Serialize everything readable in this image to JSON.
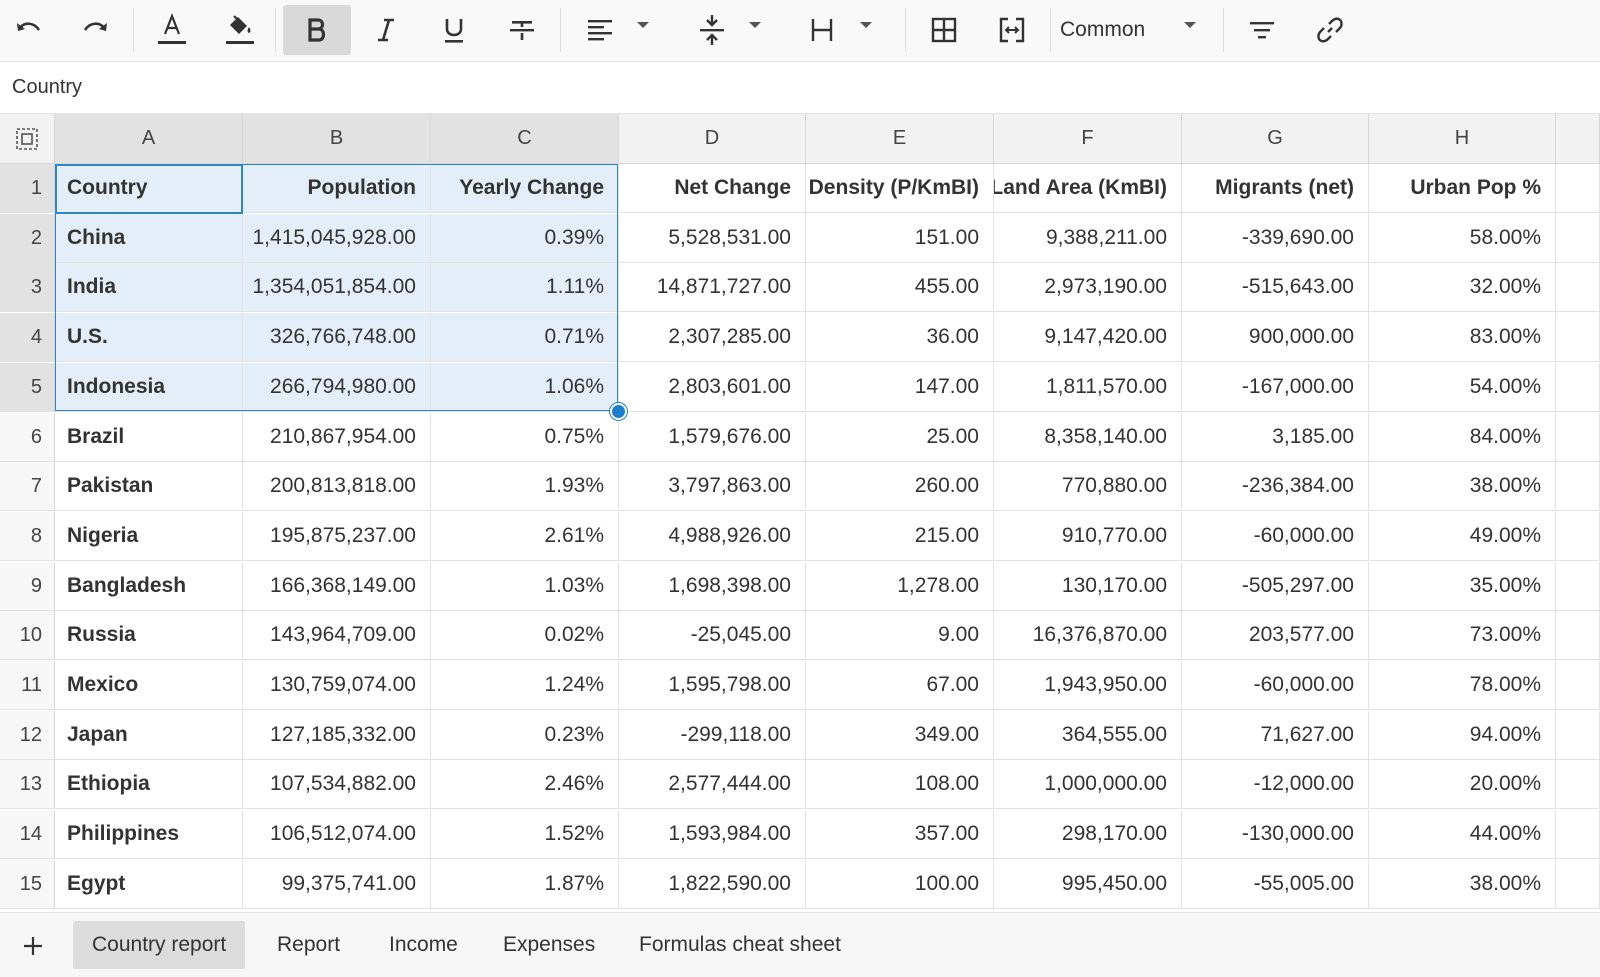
{
  "toolbar": {
    "buttons": [
      {
        "name": "undo-button",
        "icon": "undo-icon"
      },
      {
        "name": "redo-button",
        "icon": "redo-icon"
      },
      {
        "name": "text-color-button",
        "icon": "text-color-icon"
      },
      {
        "name": "fill-color-button",
        "icon": "paint-bucket-icon"
      },
      {
        "name": "bold-button",
        "icon": "bold-icon",
        "active": true
      },
      {
        "name": "italic-button",
        "icon": "italic-icon"
      },
      {
        "name": "underline-button",
        "icon": "underline-icon"
      },
      {
        "name": "strikethrough-button",
        "icon": "strikethrough-icon"
      },
      {
        "name": "horizontal-align-button",
        "icon": "align-left-icon"
      },
      {
        "name": "vertical-align-button",
        "icon": "align-middle-icon"
      },
      {
        "name": "text-wrap-button",
        "icon": "text-wrap-icon"
      },
      {
        "name": "borders-button",
        "icon": "borders-icon"
      },
      {
        "name": "merge-cells-button",
        "icon": "merge-cells-icon"
      },
      {
        "name": "filter-button",
        "icon": "filter-icon"
      },
      {
        "name": "link-button",
        "icon": "link-icon"
      }
    ],
    "number_format": "Common"
  },
  "formula_bar": {
    "value": "Country"
  },
  "columns": [
    "A",
    "B",
    "C",
    "D",
    "E",
    "F",
    "G",
    "H"
  ],
  "rows": [
    {
      "num": "1",
      "cells": [
        "Country",
        "Population",
        "Yearly Change",
        "Net Change",
        "Density (P/KmBI)",
        "Land Area (KmBI)",
        "Migrants (net)",
        "Urban Pop %"
      ]
    },
    {
      "num": "2",
      "cells": [
        "China",
        "1,415,045,928.00",
        "0.39%",
        "5,528,531.00",
        "151.00",
        "9,388,211.00",
        "-339,690.00",
        "58.00%"
      ]
    },
    {
      "num": "3",
      "cells": [
        "India",
        "1,354,051,854.00",
        "1.11%",
        "14,871,727.00",
        "455.00",
        "2,973,190.00",
        "-515,643.00",
        "32.00%"
      ]
    },
    {
      "num": "4",
      "cells": [
        "U.S.",
        "326,766,748.00",
        "0.71%",
        "2,307,285.00",
        "36.00",
        "9,147,420.00",
        "900,000.00",
        "83.00%"
      ]
    },
    {
      "num": "5",
      "cells": [
        "Indonesia",
        "266,794,980.00",
        "1.06%",
        "2,803,601.00",
        "147.00",
        "1,811,570.00",
        "-167,000.00",
        "54.00%"
      ]
    },
    {
      "num": "6",
      "cells": [
        "Brazil",
        "210,867,954.00",
        "0.75%",
        "1,579,676.00",
        "25.00",
        "8,358,140.00",
        "3,185.00",
        "84.00%"
      ]
    },
    {
      "num": "7",
      "cells": [
        "Pakistan",
        "200,813,818.00",
        "1.93%",
        "3,797,863.00",
        "260.00",
        "770,880.00",
        "-236,384.00",
        "38.00%"
      ]
    },
    {
      "num": "8",
      "cells": [
        "Nigeria",
        "195,875,237.00",
        "2.61%",
        "4,988,926.00",
        "215.00",
        "910,770.00",
        "-60,000.00",
        "49.00%"
      ]
    },
    {
      "num": "9",
      "cells": [
        "Bangladesh",
        "166,368,149.00",
        "1.03%",
        "1,698,398.00",
        "1,278.00",
        "130,170.00",
        "-505,297.00",
        "35.00%"
      ]
    },
    {
      "num": "10",
      "cells": [
        "Russia",
        "143,964,709.00",
        "0.02%",
        "-25,045.00",
        "9.00",
        "16,376,870.00",
        "203,577.00",
        "73.00%"
      ]
    },
    {
      "num": "11",
      "cells": [
        "Mexico",
        "130,759,074.00",
        "1.24%",
        "1,595,798.00",
        "67.00",
        "1,943,950.00",
        "-60,000.00",
        "78.00%"
      ]
    },
    {
      "num": "12",
      "cells": [
        "Japan",
        "127,185,332.00",
        "0.23%",
        "-299,118.00",
        "349.00",
        "364,555.00",
        "71,627.00",
        "94.00%"
      ]
    },
    {
      "num": "13",
      "cells": [
        "Ethiopia",
        "107,534,882.00",
        "2.46%",
        "2,577,444.00",
        "108.00",
        "1,000,000.00",
        "-12,000.00",
        "20.00%"
      ]
    },
    {
      "num": "14",
      "cells": [
        "Philippines",
        "106,512,074.00",
        "1.52%",
        "1,593,984.00",
        "357.00",
        "298,170.00",
        "-130,000.00",
        "44.00%"
      ]
    },
    {
      "num": "15",
      "cells": [
        "Egypt",
        "99,375,741.00",
        "1.87%",
        "1,822,590.00",
        "100.00",
        "995,450.00",
        "-55,005.00",
        "38.00%"
      ]
    }
  ],
  "sheets": [
    {
      "label": "Country report",
      "active": true
    },
    {
      "label": "Report",
      "active": false
    },
    {
      "label": "Income",
      "active": false
    },
    {
      "label": "Expenses",
      "active": false
    },
    {
      "label": "Formulas cheat sheet",
      "active": false
    }
  ],
  "colors": {
    "selection_border": "#2e86c8",
    "selection_fill": "#e3eef8",
    "fill_handle": "#1e7ec9"
  }
}
